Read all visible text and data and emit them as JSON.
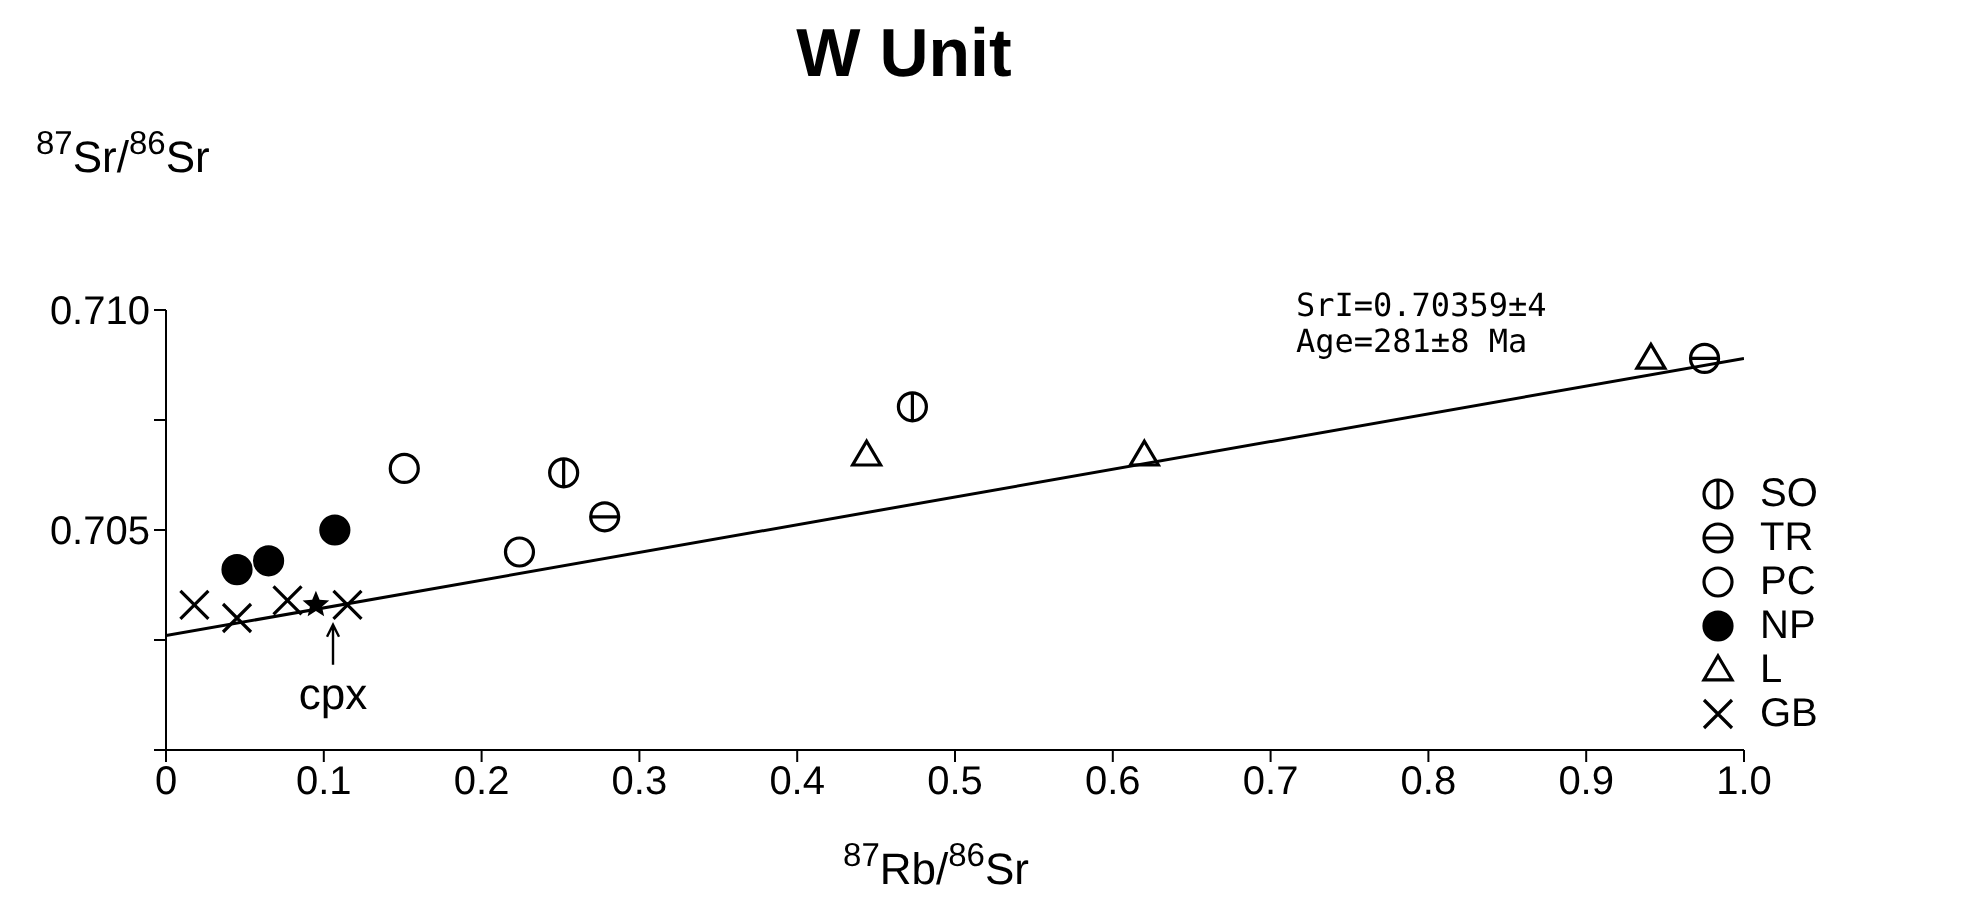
{
  "chart_data": {
    "type": "scatter",
    "title": "W Unit",
    "xlabel": "$^{87}$Rb/$^{86}$Sr",
    "ylabel": "$^{87}$Sr/$^{86}$Sr",
    "xlim": [
      0,
      1.0
    ],
    "xticks": [
      0,
      0.1,
      0.2,
      0.3,
      0.4,
      0.5,
      0.6,
      0.7,
      0.8,
      0.9,
      {
        "value": 1.0,
        "label": "1.0"
      }
    ],
    "ylim": [
      0.7,
      0.71
    ],
    "yticks": [
      {
        "value": 0.7,
        "label": null
      },
      {
        "value": 0.7025,
        "label": null
      },
      0.705,
      {
        "value": 0.7075,
        "label": null
      },
      {
        "value": 0.71,
        "label": "0.710"
      }
    ],
    "grid": false,
    "legend": "bottom right",
    "annotations": [
      "SrI=0.70359±4",
      "Age=281±8 Ma",
      {
        "text": "cpx",
        "x": 0.095,
        "y": 0.7033
      }
    ],
    "series": [
      {
        "name": "SO",
        "color": "#000000",
        "x": [
          0.252,
          0.473
        ],
        "values": [
          0.7063,
          0.7078
        ]
      },
      {
        "name": "TR",
        "color": "#000000",
        "x": [
          0.278,
          0.975
        ],
        "values": [
          0.7053,
          0.7089
        ]
      },
      {
        "name": "PC",
        "color": "#000000",
        "marker": "circle",
        "x": [
          0.151,
          0.224
        ],
        "values": [
          0.7064,
          0.7045
        ]
      },
      {
        "name": "NP",
        "color": "#000000",
        "marker": "circle",
        "x": [
          0.045,
          0.065,
          0.107
        ],
        "values": [
          0.7041,
          0.7043,
          0.705
        ]
      },
      {
        "name": "L",
        "color": "#000000",
        "marker": "triangle",
        "x": [
          0.444,
          0.62,
          0.941
        ],
        "values": [
          0.7067,
          0.7067,
          0.7089
        ]
      },
      {
        "name": "GB",
        "color": "#000000",
        "marker": "cross",
        "x": [
          0.018,
          0.045,
          0.077,
          0.115
        ],
        "values": [
          0.7033,
          0.703,
          0.7034,
          0.7033
        ]
      },
      {
        "color": "#000000",
        "marker": "star",
        "x": [
          0.095
        ],
        "values": [
          0.7033
        ]
      },
      {
        "type": "line",
        "color": "#000000",
        "marker": "none",
        "x": [
          0,
          1.0
        ],
        "values": [
          0.7026,
          0.7089
        ]
      }
    ]
  }
}
